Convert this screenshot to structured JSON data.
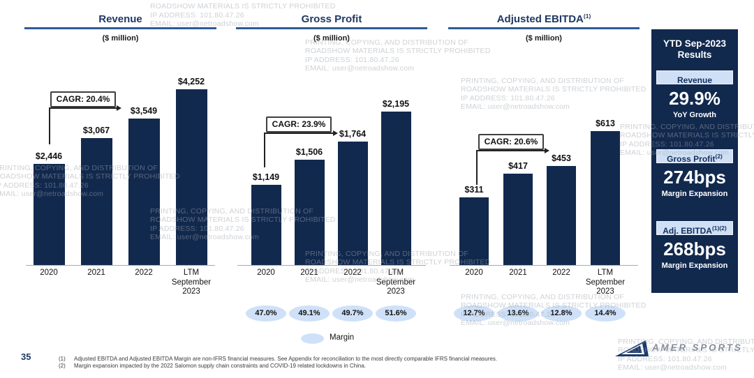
{
  "watermark": {
    "line1": "PRINTING, COPYING, AND DISTRIBUTION OF",
    "line2": "ROADSHOW MATERIALS IS STRICTLY PROHIBITED",
    "line3": "IP ADDRESS: 101.80.47.26",
    "line4": "EMAIL: user@netroadshow.com"
  },
  "chart_data": [
    {
      "type": "bar",
      "title": "Revenue",
      "title_sup": "",
      "subtitle": "($ million)",
      "cagr_label": "CAGR: 20.4%",
      "categories": [
        "2020",
        "2021",
        "2022",
        "LTM September 2023"
      ],
      "category_lines": [
        [
          "2020"
        ],
        [
          "2021"
        ],
        [
          "2022"
        ],
        [
          "LTM",
          "September",
          "2023"
        ]
      ],
      "values": [
        2446,
        3067,
        3549,
        4252
      ],
      "value_labels": [
        "$2,446",
        "$3,067",
        "$3,549",
        "$4,252"
      ],
      "margins": null,
      "ylim": [
        0,
        4252
      ],
      "bar_color": "#12294e"
    },
    {
      "type": "bar",
      "title": "Gross Profit",
      "title_sup": "",
      "subtitle": "($ million)",
      "cagr_label": "CAGR: 23.9%",
      "categories": [
        "2020",
        "2021",
        "2022",
        "LTM September 2023"
      ],
      "category_lines": [
        [
          "2020"
        ],
        [
          "2021"
        ],
        [
          "2022"
        ],
        [
          "LTM",
          "September",
          "2023"
        ]
      ],
      "values": [
        1149,
        1506,
        1764,
        2195
      ],
      "value_labels": [
        "$1,149",
        "$1,506",
        "$1,764",
        "$2,195"
      ],
      "margins": [
        "47.0%",
        "49.1%",
        "49.7%",
        "51.6%"
      ],
      "ylim": [
        0,
        2195
      ],
      "bar_color": "#12294e"
    },
    {
      "type": "bar",
      "title": "Adjusted EBITDA",
      "title_sup": "(1)",
      "subtitle": "($ million)",
      "cagr_label": "CAGR: 20.6%",
      "categories": [
        "2020",
        "2021",
        "2022",
        "LTM September 2023"
      ],
      "category_lines": [
        [
          "2020"
        ],
        [
          "2021"
        ],
        [
          "2022"
        ],
        [
          "LTM",
          "September",
          "2023"
        ]
      ],
      "values": [
        311,
        417,
        453,
        613
      ],
      "value_labels": [
        "$311",
        "$417",
        "$453",
        "$613"
      ],
      "margins": [
        "12.7%",
        "13.6%",
        "12.8%",
        "14.4%"
      ],
      "ylim": [
        0,
        613
      ],
      "bar_color": "#12294e"
    }
  ],
  "legend": {
    "label": "Margin"
  },
  "sidebar": {
    "title_line1": "YTD Sep-2023",
    "title_line2": "Results",
    "sections": [
      {
        "band": "Revenue",
        "band_sup": "",
        "value": "29.9%",
        "caption": "YoY Growth"
      },
      {
        "band": "Gross Profit",
        "band_sup": "(2)",
        "value": "274bps",
        "caption": "Margin Expansion"
      },
      {
        "band": "Adj. EBITDA",
        "band_sup": "(1)(2)",
        "value": "268bps",
        "caption": "Margin Expansion"
      }
    ]
  },
  "footer": {
    "page_number": "35",
    "footnotes": [
      {
        "marker": "(1)",
        "text": "Adjusted EBITDA and Adjusted EBITDA Margin are non-IFRS financial measures. See Appendix for reconciliation to the most directly comparable IFRS financial measures."
      },
      {
        "marker": "(2)",
        "text": "Margin expansion impacted by the 2022 Salomon supply chain constraints and COVID-19 related lockdowns in China."
      }
    ],
    "logo_text": "AMER SPORTS"
  },
  "colors": {
    "bar_navy": "#12294e",
    "title_blue": "#1f3864",
    "rule_blue": "#2e5b95",
    "band_light_blue": "#cfe0f6",
    "margin_ellipse_blue": "#cfe1f8",
    "watermark_gray": "#d5d8dc"
  }
}
